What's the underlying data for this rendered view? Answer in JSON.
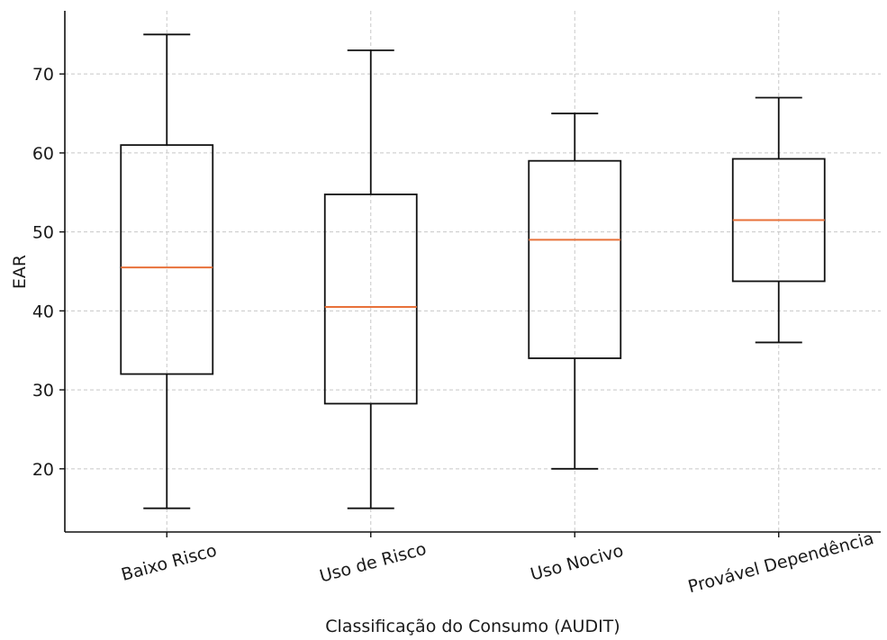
{
  "chart_data": {
    "type": "box",
    "title": "",
    "xlabel": "Classificação do Consumo (AUDIT)",
    "ylabel": "EAR",
    "ylim": [
      12,
      78
    ],
    "yticks": [
      20,
      30,
      40,
      50,
      60,
      70
    ],
    "grid": true,
    "categories": [
      "Baixo Risco",
      "Uso de Risco",
      "Uso Nocivo",
      "Provável Dependência"
    ],
    "boxes": [
      {
        "category": "Baixo Risco",
        "whisker_low": 15,
        "q1": 32,
        "median": 45.5,
        "q3": 61,
        "whisker_high": 75
      },
      {
        "category": "Uso de Risco",
        "whisker_low": 15,
        "q1": 28.25,
        "median": 40.5,
        "q3": 54.75,
        "whisker_high": 73
      },
      {
        "category": "Uso Nocivo",
        "whisker_low": 20,
        "q1": 34,
        "median": 49,
        "q3": 59,
        "whisker_high": 65
      },
      {
        "category": "Provável Dependência",
        "whisker_low": 36,
        "q1": 43.75,
        "median": 51.5,
        "q3": 59.25,
        "whisker_high": 67
      }
    ],
    "colors": {
      "box": "#111111",
      "median": "#e8713a",
      "grid": "#c8c8c8"
    }
  }
}
